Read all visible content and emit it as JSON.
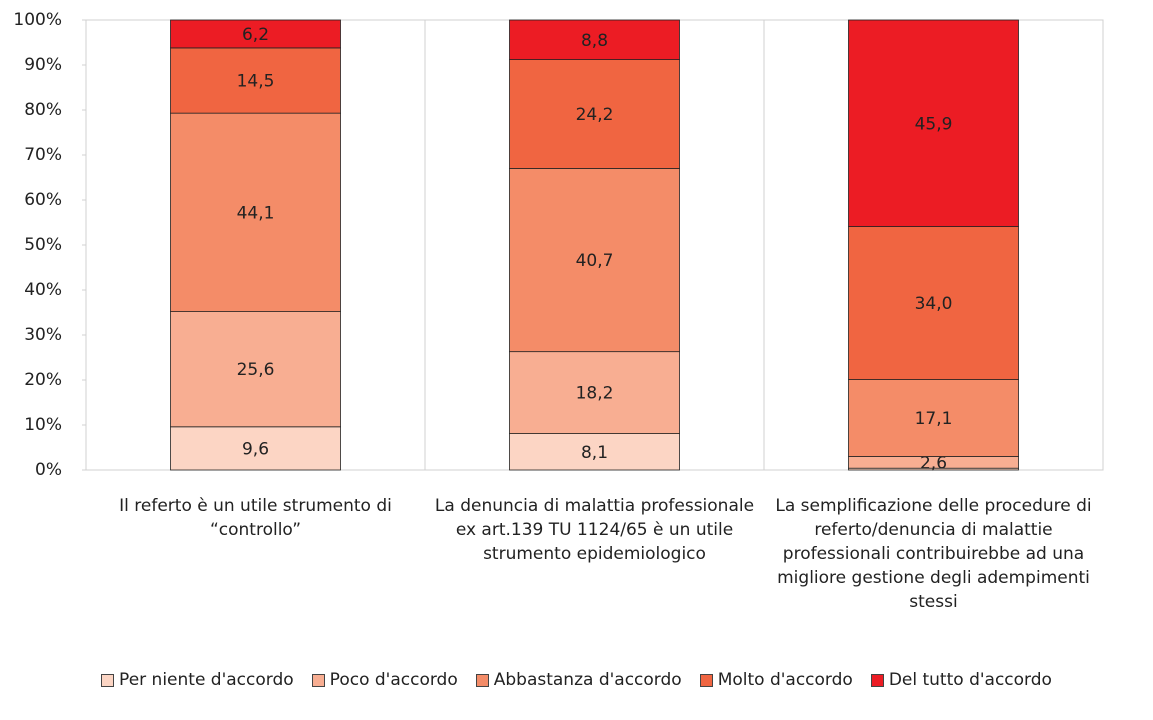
{
  "chart_data": {
    "type": "stacked_bar",
    "categories": [
      "Il referto è un utile strumento di “controllo”",
      "La denuncia di malattia professionale ex art.139 TU 1124/65 è un utile strumento epidemiologico",
      "La semplificazione delle procedure di referto/denuncia di malattie professionali contribuirebbe ad una migliore gestione degli adempimenti stessi"
    ],
    "series": [
      {
        "name": "Per niente d'accordo",
        "color": "#fcd5c4",
        "values": [
          9.6,
          8.1,
          0.4
        ],
        "value_labels": [
          "9,6",
          "8,1",
          null
        ]
      },
      {
        "name": "Poco d'accordo",
        "color": "#f8ae92",
        "values": [
          25.6,
          18.2,
          2.6
        ],
        "value_labels": [
          "25,6",
          "18,2",
          "2,6"
        ]
      },
      {
        "name": "Abbastanza d'accordo",
        "color": "#f48c68",
        "values": [
          44.1,
          40.7,
          17.1
        ],
        "value_labels": [
          "44,1",
          "40,7",
          "17,1"
        ]
      },
      {
        "name": "Molto d'accordo",
        "color": "#f06541",
        "values": [
          14.5,
          24.2,
          34.0
        ],
        "value_labels": [
          "14,5",
          "24,2",
          "34,0"
        ]
      },
      {
        "name": "Del tutto d'accordo",
        "color": "#ec1c24",
        "values": [
          6.2,
          8.8,
          45.9
        ],
        "value_labels": [
          "6,2",
          "8,8",
          "45,9"
        ]
      }
    ],
    "ylim": [
      0,
      100
    ],
    "yticks": [
      {
        "value": 0,
        "label": "0%"
      },
      {
        "value": 10,
        "label": "10%"
      },
      {
        "value": 20,
        "label": "20%"
      },
      {
        "value": 30,
        "label": "30%"
      },
      {
        "value": 40,
        "label": "40%"
      },
      {
        "value": 50,
        "label": "50%"
      },
      {
        "value": 60,
        "label": "60%"
      },
      {
        "value": 70,
        "label": "70%"
      },
      {
        "value": 80,
        "label": "80%"
      },
      {
        "value": 90,
        "label": "90%"
      },
      {
        "value": 100,
        "label": "100%"
      }
    ],
    "legend": "bottom"
  }
}
